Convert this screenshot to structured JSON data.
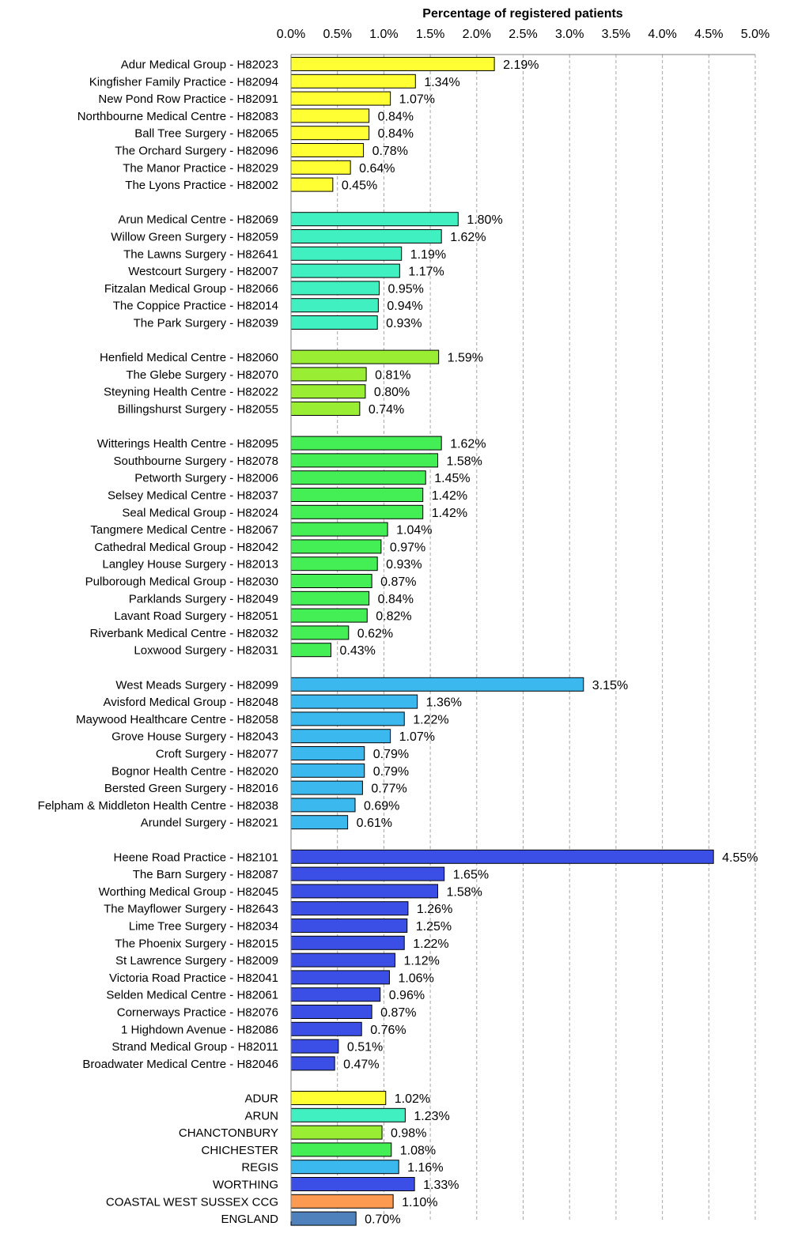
{
  "chart_data": {
    "type": "bar",
    "orientation": "horizontal",
    "title": "Percentage of registered patients",
    "xlim": [
      0,
      5
    ],
    "x_ticks": [
      "0.0%",
      "0.5%",
      "1.0%",
      "1.5%",
      "2.0%",
      "2.5%",
      "3.0%",
      "3.5%",
      "4.0%",
      "4.5%",
      "5.0%"
    ],
    "grid": "vertical dashed",
    "groups": [
      {
        "color": "#ffff33",
        "bars": [
          {
            "label": "Adur Medical Group - H82023",
            "value": 2.19,
            "text": "2.19%"
          },
          {
            "label": "Kingfisher Family Practice - H82094",
            "value": 1.34,
            "text": "1.34%"
          },
          {
            "label": "New Pond Row Practice - H82091",
            "value": 1.07,
            "text": "1.07%"
          },
          {
            "label": "Northbourne Medical Centre - H82083",
            "value": 0.84,
            "text": "0.84%"
          },
          {
            "label": "Ball Tree Surgery - H82065",
            "value": 0.84,
            "text": "0.84%"
          },
          {
            "label": "The Orchard Surgery - H82096",
            "value": 0.78,
            "text": "0.78%"
          },
          {
            "label": "The Manor Practice - H82029",
            "value": 0.64,
            "text": "0.64%"
          },
          {
            "label": "The Lyons Practice - H82002",
            "value": 0.45,
            "text": "0.45%"
          }
        ]
      },
      {
        "color": "#40f0c0",
        "bars": [
          {
            "label": "Arun Medical Centre - H82069",
            "value": 1.8,
            "text": "1.80%"
          },
          {
            "label": "Willow Green Surgery - H82059",
            "value": 1.62,
            "text": "1.62%"
          },
          {
            "label": "The Lawns Surgery - H82641",
            "value": 1.19,
            "text": "1.19%"
          },
          {
            "label": "Westcourt Surgery - H82007",
            "value": 1.17,
            "text": "1.17%"
          },
          {
            "label": "Fitzalan Medical Group - H82066",
            "value": 0.95,
            "text": "0.95%"
          },
          {
            "label": "The Coppice Practice - H82014",
            "value": 0.94,
            "text": "0.94%"
          },
          {
            "label": "The Park Surgery - H82039",
            "value": 0.93,
            "text": "0.93%"
          }
        ]
      },
      {
        "color": "#99ee33",
        "bars": [
          {
            "label": "Henfield Medical Centre - H82060",
            "value": 1.59,
            "text": "1.59%"
          },
          {
            "label": "The Glebe Surgery - H82070",
            "value": 0.81,
            "text": "0.81%"
          },
          {
            "label": "Steyning Health Centre - H82022",
            "value": 0.8,
            "text": "0.80%"
          },
          {
            "label": "Billingshurst Surgery - H82055",
            "value": 0.74,
            "text": "0.74%"
          }
        ]
      },
      {
        "color": "#44ee55",
        "bars": [
          {
            "label": "Witterings Health Centre - H82095",
            "value": 1.62,
            "text": "1.62%"
          },
          {
            "label": "Southbourne Surgery - H82078",
            "value": 1.58,
            "text": "1.58%"
          },
          {
            "label": "Petworth Surgery - H82006",
            "value": 1.45,
            "text": "1.45%"
          },
          {
            "label": "Selsey Medical Centre - H82037",
            "value": 1.42,
            "text": "1.42%"
          },
          {
            "label": "Seal Medical Group - H82024",
            "value": 1.42,
            "text": "1.42%"
          },
          {
            "label": "Tangmere Medical Centre - H82067",
            "value": 1.04,
            "text": "1.04%"
          },
          {
            "label": "Cathedral Medical Group - H82042",
            "value": 0.97,
            "text": "0.97%"
          },
          {
            "label": "Langley House Surgery - H82013",
            "value": 0.93,
            "text": "0.93%"
          },
          {
            "label": "Pulborough Medical Group - H82030",
            "value": 0.87,
            "text": "0.87%"
          },
          {
            "label": "Parklands Surgery - H82049",
            "value": 0.84,
            "text": "0.84%"
          },
          {
            "label": "Lavant Road Surgery - H82051",
            "value": 0.82,
            "text": "0.82%"
          },
          {
            "label": "Riverbank Medical Centre - H82032",
            "value": 0.62,
            "text": "0.62%"
          },
          {
            "label": "Loxwood Surgery - H82031",
            "value": 0.43,
            "text": "0.43%"
          }
        ]
      },
      {
        "color": "#3bb8ee",
        "bars": [
          {
            "label": "West Meads Surgery - H82099",
            "value": 3.15,
            "text": "3.15%"
          },
          {
            "label": "Avisford Medical Group - H82048",
            "value": 1.36,
            "text": "1.36%"
          },
          {
            "label": "Maywood Healthcare Centre - H82058",
            "value": 1.22,
            "text": "1.22%"
          },
          {
            "label": "Grove House Surgery - H82043",
            "value": 1.07,
            "text": "1.07%"
          },
          {
            "label": "Croft Surgery - H82077",
            "value": 0.79,
            "text": "0.79%"
          },
          {
            "label": "Bognor Health Centre - H82020",
            "value": 0.79,
            "text": "0.79%"
          },
          {
            "label": "Bersted Green Surgery - H82016",
            "value": 0.77,
            "text": "0.77%"
          },
          {
            "label": "Felpham & Middleton Health Centre - H82038",
            "value": 0.69,
            "text": "0.69%"
          },
          {
            "label": "Arundel Surgery - H82021",
            "value": 0.61,
            "text": "0.61%"
          }
        ]
      },
      {
        "color": "#3b4fe6",
        "bars": [
          {
            "label": "Heene Road Practice - H82101",
            "value": 4.55,
            "text": "4.55%"
          },
          {
            "label": "The Barn Surgery - H82087",
            "value": 1.65,
            "text": "1.65%"
          },
          {
            "label": "Worthing Medical Group - H82045",
            "value": 1.58,
            "text": "1.58%"
          },
          {
            "label": "The Mayflower Surgery - H82643",
            "value": 1.26,
            "text": "1.26%"
          },
          {
            "label": "Lime Tree Surgery - H82034",
            "value": 1.25,
            "text": "1.25%"
          },
          {
            "label": "The Phoenix Surgery - H82015",
            "value": 1.22,
            "text": "1.22%"
          },
          {
            "label": "St Lawrence Surgery - H82009",
            "value": 1.12,
            "text": "1.12%"
          },
          {
            "label": "Victoria Road Practice - H82041",
            "value": 1.06,
            "text": "1.06%"
          },
          {
            "label": "Selden Medical Centre - H82061",
            "value": 0.96,
            "text": "0.96%"
          },
          {
            "label": "Cornerways Practice - H82076",
            "value": 0.87,
            "text": "0.87%"
          },
          {
            "label": "1 Highdown Avenue - H82086",
            "value": 0.76,
            "text": "0.76%"
          },
          {
            "label": "Strand Medical Group - H82011",
            "value": 0.51,
            "text": "0.51%"
          },
          {
            "label": "Broadwater Medical Centre - H82046",
            "value": 0.47,
            "text": "0.47%"
          }
        ]
      },
      {
        "color": "",
        "bars": [
          {
            "label": "ADUR",
            "value": 1.02,
            "text": "1.02%",
            "color": "#ffff33"
          },
          {
            "label": "ARUN",
            "value": 1.23,
            "text": "1.23%",
            "color": "#40f0c0"
          },
          {
            "label": "CHANCTONBURY",
            "value": 0.98,
            "text": "0.98%",
            "color": "#99ee33"
          },
          {
            "label": "CHICHESTER",
            "value": 1.08,
            "text": "1.08%",
            "color": "#44ee55"
          },
          {
            "label": "REGIS",
            "value": 1.16,
            "text": "1.16%",
            "color": "#3bb8ee"
          },
          {
            "label": "WORTHING",
            "value": 1.33,
            "text": "1.33%",
            "color": "#3b4fe6"
          },
          {
            "label": "COASTAL WEST SUSSEX CCG",
            "value": 1.1,
            "text": "1.10%",
            "color": "#fb9a50"
          },
          {
            "label": "ENGLAND",
            "value": 0.7,
            "text": "0.70%",
            "color": "#4f81bd"
          }
        ]
      }
    ]
  }
}
